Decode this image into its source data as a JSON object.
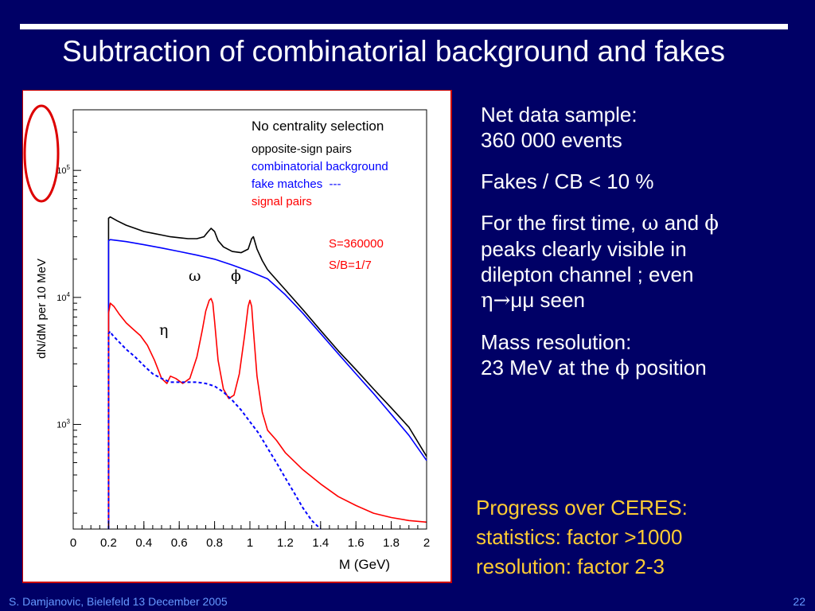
{
  "slide": {
    "title": "Subtraction of combinatorial background and fakes",
    "footer_left": "S. Damjanovic, Bielefeld 13 December 2005",
    "page_number": "22"
  },
  "notes": {
    "p1_l1": "Net data sample:",
    "p1_l2": "360 000 events",
    "p2": "Fakes / CB < 10 %",
    "p3_a": "For the first time, ",
    "p3_omega": "ω",
    "p3_b": " and ",
    "p3_phi": "ϕ",
    "p3_l2": "peaks clearly visible in",
    "p3_l3": "dilepton channel ; even",
    "p3_eta": "η",
    "p3_arrow": "→",
    "p3_tail": "μμ seen",
    "p4_l1": "Mass resolution:",
    "p4_a": "23 MeV at the ",
    "p4_phi": "ϕ",
    "p4_b": " position"
  },
  "progress": {
    "l1": "Progress over CERES:",
    "l2": "statistics: factor >1000",
    "l3": "resolution: factor 2-3"
  },
  "colors": {
    "background": "#000066",
    "highlight_text": "#ffcc33",
    "footer": "#6699ff",
    "annotation_circle": "#dd0000",
    "opposite_sign": "#000000",
    "combinatorial": "#0000ff",
    "signal": "#ff0000"
  },
  "chart_data": {
    "type": "line",
    "xlabel": "M (GeV)",
    "ylabel": "dN/dM per 10 MeV",
    "x_ticks": [
      "0",
      "0.2",
      "0.4",
      "0.6",
      "0.8",
      "1",
      "1.2",
      "1.4",
      "1.6",
      "1.8",
      "2"
    ],
    "y_ticks": [
      {
        "value": 1000,
        "base": "10",
        "exp": "3"
      },
      {
        "value": 10000,
        "base": "10",
        "exp": "4"
      },
      {
        "value": 100000,
        "base": "10",
        "exp": "5"
      }
    ],
    "xlim": [
      0,
      2
    ],
    "ylim": [
      150,
      300000
    ],
    "y_scale": "log",
    "legend_title": "No centrality selection",
    "legend": {
      "opposite_sign": "opposite-sign pairs",
      "combinatorial": "combinatorial background",
      "fakes": "fake matches  ---",
      "signal": "signal pairs"
    },
    "stats": {
      "s": "S=360000",
      "sb": "S/B=1/7"
    },
    "peak_labels": {
      "omega": "ω",
      "phi": "ϕ",
      "eta": "η"
    },
    "series": [
      {
        "name": "opposite-sign pairs",
        "color": "#000000",
        "x": [
          0.2,
          0.21,
          0.25,
          0.3,
          0.35,
          0.4,
          0.45,
          0.5,
          0.55,
          0.6,
          0.65,
          0.7,
          0.74,
          0.76,
          0.78,
          0.8,
          0.82,
          0.85,
          0.9,
          0.95,
          0.99,
          1.01,
          1.02,
          1.04,
          1.07,
          1.1,
          1.2,
          1.3,
          1.4,
          1.5,
          1.6,
          1.7,
          1.8,
          1.9,
          2.0
        ],
        "y": [
          42000,
          43000,
          40000,
          37000,
          35000,
          33000,
          32000,
          31000,
          30000,
          29500,
          29000,
          29000,
          30000,
          32500,
          35000,
          33000,
          28000,
          25000,
          23000,
          22500,
          24000,
          29000,
          30000,
          24000,
          19500,
          16500,
          11500,
          8000,
          5500,
          3800,
          2700,
          1900,
          1350,
          950,
          560
        ]
      },
      {
        "name": "combinatorial background",
        "color": "#0000ff",
        "x": [
          0.2,
          0.21,
          0.3,
          0.4,
          0.5,
          0.6,
          0.7,
          0.8,
          0.9,
          1.0,
          1.1,
          1.2,
          1.3,
          1.4,
          1.5,
          1.6,
          1.7,
          1.8,
          1.9,
          2.0
        ],
        "y": [
          28000,
          28500,
          27500,
          26000,
          24500,
          23000,
          21500,
          20000,
          18000,
          16000,
          14000,
          10500,
          7500,
          5200,
          3600,
          2500,
          1750,
          1200,
          820,
          520
        ]
      },
      {
        "name": "signal pairs",
        "color": "#ff0000",
        "x": [
          0.2,
          0.21,
          0.23,
          0.26,
          0.3,
          0.34,
          0.38,
          0.42,
          0.46,
          0.5,
          0.53,
          0.55,
          0.58,
          0.62,
          0.66,
          0.7,
          0.73,
          0.75,
          0.77,
          0.78,
          0.79,
          0.8,
          0.82,
          0.85,
          0.88,
          0.91,
          0.94,
          0.97,
          0.99,
          1.0,
          1.01,
          1.02,
          1.04,
          1.07,
          1.1,
          1.15,
          1.2,
          1.3,
          1.4,
          1.5,
          1.6,
          1.7,
          1.8,
          1.9,
          2.0
        ],
        "y": [
          7500,
          9000,
          8500,
          7400,
          6300,
          5600,
          5000,
          4200,
          3200,
          2300,
          2100,
          2400,
          2300,
          2100,
          2300,
          3400,
          5500,
          7800,
          9500,
          9800,
          9000,
          6500,
          3200,
          1900,
          1600,
          1700,
          2500,
          5000,
          8500,
          9500,
          8500,
          5500,
          2400,
          1250,
          900,
          750,
          600,
          440,
          340,
          270,
          230,
          200,
          185,
          175,
          170
        ]
      },
      {
        "name": "fake matches",
        "color": "#0000ff",
        "dashed": true,
        "x": [
          0.2,
          0.21,
          0.22,
          0.25,
          0.3,
          0.35,
          0.4,
          0.45,
          0.5,
          0.55,
          0.6,
          0.65,
          0.7,
          0.75,
          0.8,
          0.85,
          0.9,
          0.95,
          1.0,
          1.05,
          1.1,
          1.15,
          1.2,
          1.25,
          1.3,
          1.35,
          1.4
        ],
        "y": [
          5200,
          5400,
          5100,
          4600,
          3900,
          3400,
          2900,
          2500,
          2300,
          2150,
          2150,
          2150,
          2150,
          2100,
          2000,
          1800,
          1550,
          1300,
          1050,
          850,
          650,
          500,
          380,
          290,
          220,
          175,
          150
        ]
      }
    ]
  }
}
